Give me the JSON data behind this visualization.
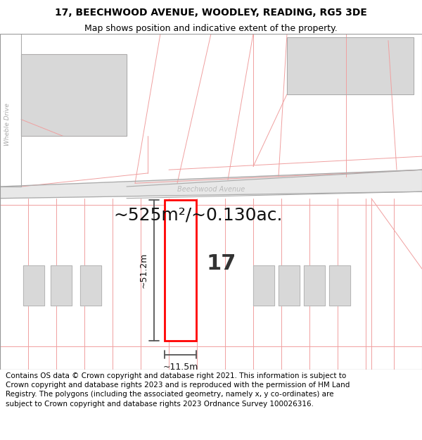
{
  "title_line1": "17, BEECHWOOD AVENUE, WOODLEY, READING, RG5 3DE",
  "title_line2": "Map shows position and indicative extent of the property.",
  "footer_lines": [
    "Contains OS data © Crown copyright and database right 2021. This information is subject to Crown copyright and database rights 2023 and is reproduced with the permission of HM Land Registry. The polygons (including the associated geometry, namely x, y co-ordinates) are subject to Crown copyright and database rights 2023 Ordnance Survey 100026316."
  ],
  "area_label": "~525m²/~0.130ac.",
  "width_label": "~11.5m",
  "height_label": "~51.2m",
  "number_label": "17",
  "map_bg": "#ffffff",
  "plot_border_color": "#ff0000",
  "background_color": "#ffffff",
  "cadastral_color": "#f0a0a0",
  "dim_line_color": "#555555",
  "building_color": "#d8d8d8",
  "road_color": "#e0e0e0",
  "gray_line": "#aaaaaa",
  "street_label": "Beechwood Avenue",
  "wheble_label": "Wheble Drive",
  "title_fontsize": 10,
  "subtitle_fontsize": 9,
  "footer_fontsize": 7.5,
  "area_fontsize": 18,
  "number_fontsize": 22,
  "dim_fontsize": 9
}
